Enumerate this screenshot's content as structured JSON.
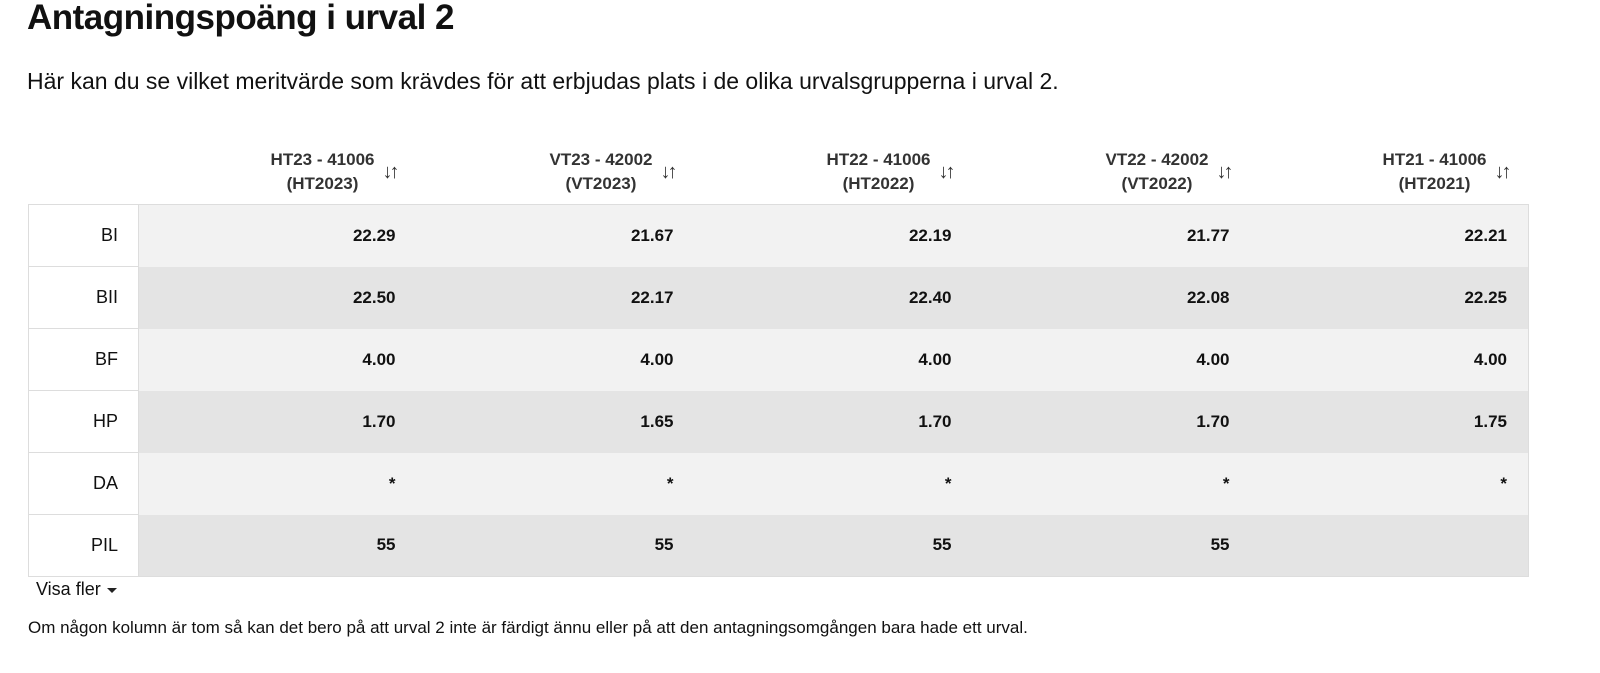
{
  "header": {
    "title": "Antagningspoäng i urval 2",
    "description": "Här kan du se vilket meritvärde som krävdes för att erbjudas plats i de olika urvalsgrupperna i urval 2."
  },
  "table": {
    "columns": [
      {
        "label": "HT23 - 41006",
        "term": "(HT2023)"
      },
      {
        "label": "VT23 - 42002",
        "term": "(VT2023)"
      },
      {
        "label": "HT22 - 41006",
        "term": "(HT2022)"
      },
      {
        "label": "VT22 - 42002",
        "term": "(VT2022)"
      },
      {
        "label": "HT21 - 41006",
        "term": "(HT2021)"
      }
    ],
    "rows": [
      {
        "group": "BI",
        "cells": [
          "22.29",
          "21.67",
          "22.19",
          "21.77",
          "22.21"
        ]
      },
      {
        "group": "BII",
        "cells": [
          "22.50",
          "22.17",
          "22.40",
          "22.08",
          "22.25"
        ]
      },
      {
        "group": "BF",
        "cells": [
          "4.00",
          "4.00",
          "4.00",
          "4.00",
          "4.00"
        ]
      },
      {
        "group": "HP",
        "cells": [
          "1.70",
          "1.65",
          "1.70",
          "1.70",
          "1.75"
        ]
      },
      {
        "group": "DA",
        "cells": [
          "*",
          "*",
          "*",
          "*",
          "*"
        ]
      },
      {
        "group": "PIL",
        "cells": [
          "55",
          "55",
          "55",
          "55",
          null
        ]
      }
    ]
  },
  "show_more": "Visa fler",
  "footnote": "Om någon kolumn är tom så kan det bero på att urval 2 inte är färdigt ännu eller på att den antagningsomgången bara hade ett urval."
}
